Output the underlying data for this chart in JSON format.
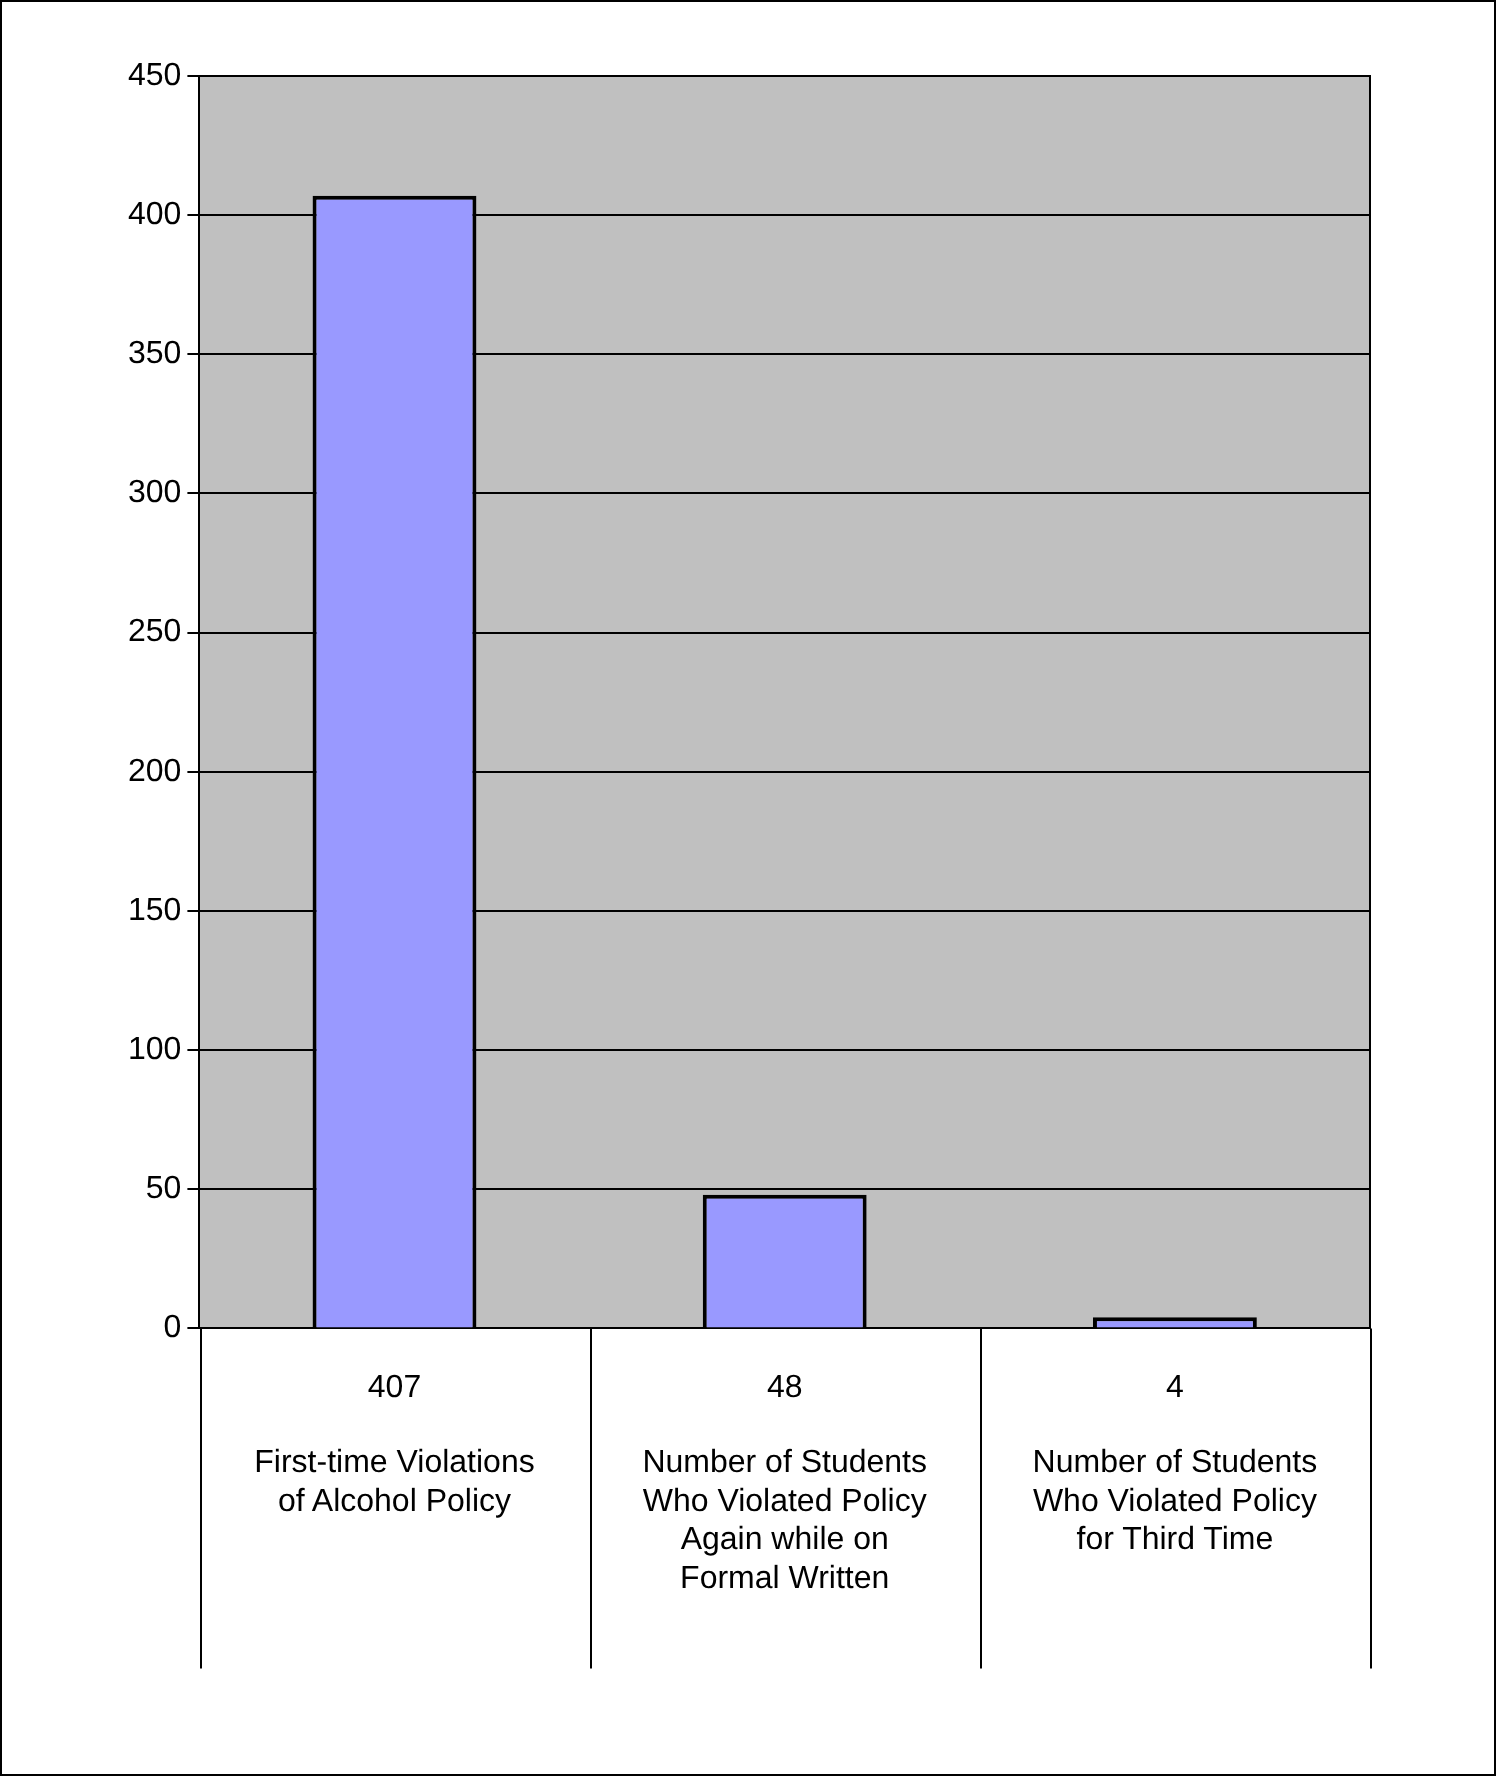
{
  "chart_data": {
    "type": "bar",
    "categories": [
      "First-time Violations of Alcohol Policy",
      "Number of Students Who Violated Policy Again while on Formal Written",
      "Number of Students Who Violated Policy for Third Time"
    ],
    "values": [
      407,
      48,
      4
    ],
    "color": "#9999ff",
    "ylim": [
      0,
      450
    ],
    "yticks": [
      0,
      50,
      100,
      150,
      200,
      250,
      300,
      350,
      400,
      450
    ],
    "grid": "y",
    "data_labels": true,
    "legend": false
  }
}
